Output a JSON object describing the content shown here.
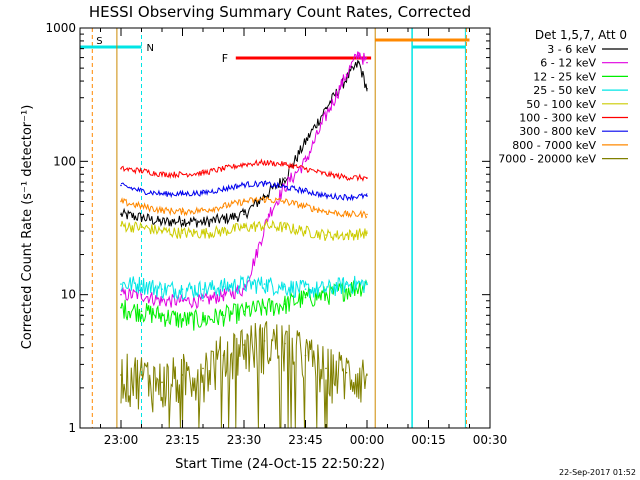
{
  "chart_data": {
    "type": "line",
    "title": "HESSI Observing Summary Count Rates, Corrected",
    "xlabel": "Start Time (24-Oct-15 22:50:22)",
    "ylabel": "Corrected Count Rate (s⁻¹ detector⁻¹)",
    "y_scale": "log",
    "ylim": [
      1,
      1000
    ],
    "xlim": [
      "22:50",
      "00:30"
    ],
    "x_ticks": [
      "23:00",
      "23:15",
      "23:30",
      "23:45",
      "00:00",
      "00:15",
      "00:30"
    ],
    "y_ticks": [
      "1",
      "10",
      "100",
      "1000"
    ],
    "timestamp": "22-Sep-2017 01:52",
    "legend_header": "Det 1,5,7, Att 0",
    "legend_position": "right",
    "flags": {
      "S": {
        "label": "S",
        "color": "#ff8800"
      },
      "N": {
        "label": "N",
        "color": "#00e5e5"
      },
      "F": {
        "label": "F",
        "color": "#ff0000"
      }
    },
    "series": [
      {
        "name": "3 - 6 keV",
        "color": "#000000",
        "x": [
          "23:00",
          "23:05",
          "23:10",
          "23:15",
          "23:20",
          "23:25",
          "23:30",
          "23:35",
          "23:40",
          "23:45",
          "23:50",
          "23:55",
          "23:58",
          "00:00"
        ],
        "y": [
          40,
          38,
          35,
          36,
          35,
          37,
          40,
          55,
          75,
          140,
          250,
          420,
          550,
          350
        ]
      },
      {
        "name": "6 - 12 keV",
        "color": "#e000e0",
        "x": [
          "23:00",
          "23:05",
          "23:10",
          "23:15",
          "23:20",
          "23:25",
          "23:30",
          "23:33",
          "23:36",
          "23:40",
          "23:45",
          "23:50",
          "23:55",
          "23:58",
          "00:00"
        ],
        "y": [
          10,
          10,
          9,
          9,
          9,
          10,
          11,
          20,
          40,
          65,
          100,
          220,
          450,
          650,
          550
        ]
      },
      {
        "name": "12 - 25 keV",
        "color": "#00ee00",
        "x": [
          "23:00",
          "23:05",
          "23:10",
          "23:15",
          "23:20",
          "23:25",
          "23:30",
          "23:35",
          "23:40",
          "23:45",
          "23:50",
          "23:55",
          "00:00"
        ],
        "y": [
          8,
          7.5,
          7,
          6.5,
          6.5,
          7,
          7.5,
          8,
          8.5,
          9.5,
          10,
          11,
          12
        ]
      },
      {
        "name": "25 - 50 keV",
        "color": "#00e5e5",
        "x": [
          "23:00",
          "23:05",
          "23:10",
          "23:15",
          "23:20",
          "23:25",
          "23:30",
          "23:35",
          "23:40",
          "23:45",
          "23:50",
          "23:55",
          "00:00"
        ],
        "y": [
          12,
          12,
          11,
          11,
          11,
          11.5,
          12,
          12,
          11.5,
          11,
          11,
          12,
          12
        ]
      },
      {
        "name": "50 - 100 keV",
        "color": "#cccc00",
        "x": [
          "23:00",
          "23:05",
          "23:10",
          "23:15",
          "23:20",
          "23:25",
          "23:30",
          "23:35",
          "23:40",
          "23:45",
          "23:50",
          "23:55",
          "00:00"
        ],
        "y": [
          33,
          32,
          30,
          29,
          29,
          30,
          32,
          33,
          32,
          30,
          28,
          28,
          29
        ]
      },
      {
        "name": "100 - 300 keV",
        "color": "#ff0000",
        "x": [
          "23:00",
          "23:05",
          "23:10",
          "23:15",
          "23:20",
          "23:25",
          "23:30",
          "23:35",
          "23:40",
          "23:45",
          "23:50",
          "23:55",
          "00:00"
        ],
        "y": [
          88,
          85,
          80,
          80,
          82,
          88,
          95,
          98,
          95,
          88,
          80,
          76,
          75
        ]
      },
      {
        "name": "300 - 800 keV",
        "color": "#0000ee",
        "x": [
          "23:00",
          "23:05",
          "23:10",
          "23:15",
          "23:20",
          "23:25",
          "23:30",
          "23:35",
          "23:40",
          "23:45",
          "23:50",
          "23:55",
          "00:00"
        ],
        "y": [
          66,
          60,
          57,
          57,
          58,
          62,
          67,
          68,
          64,
          60,
          55,
          54,
          55
        ]
      },
      {
        "name": "800 - 7000 keV",
        "color": "#ff8800",
        "x": [
          "23:00",
          "23:05",
          "23:10",
          "23:15",
          "23:20",
          "23:25",
          "23:30",
          "23:35",
          "23:40",
          "23:45",
          "23:50",
          "23:55",
          "00:00"
        ],
        "y": [
          50,
          46,
          43,
          42,
          43,
          46,
          50,
          52,
          50,
          46,
          42,
          40,
          40
        ]
      },
      {
        "name": "7000 - 20000 keV",
        "color": "#808000",
        "x": [
          "23:00",
          "23:05",
          "23:10",
          "23:15",
          "23:20",
          "23:25",
          "23:30",
          "23:35",
          "23:40",
          "23:45",
          "23:50",
          "23:55",
          "00:00"
        ],
        "y": [
          2.5,
          2.5,
          2.2,
          2.5,
          2.8,
          3.5,
          4.2,
          4.5,
          4.3,
          3.5,
          2.8,
          2.6,
          2.5
        ]
      }
    ]
  }
}
